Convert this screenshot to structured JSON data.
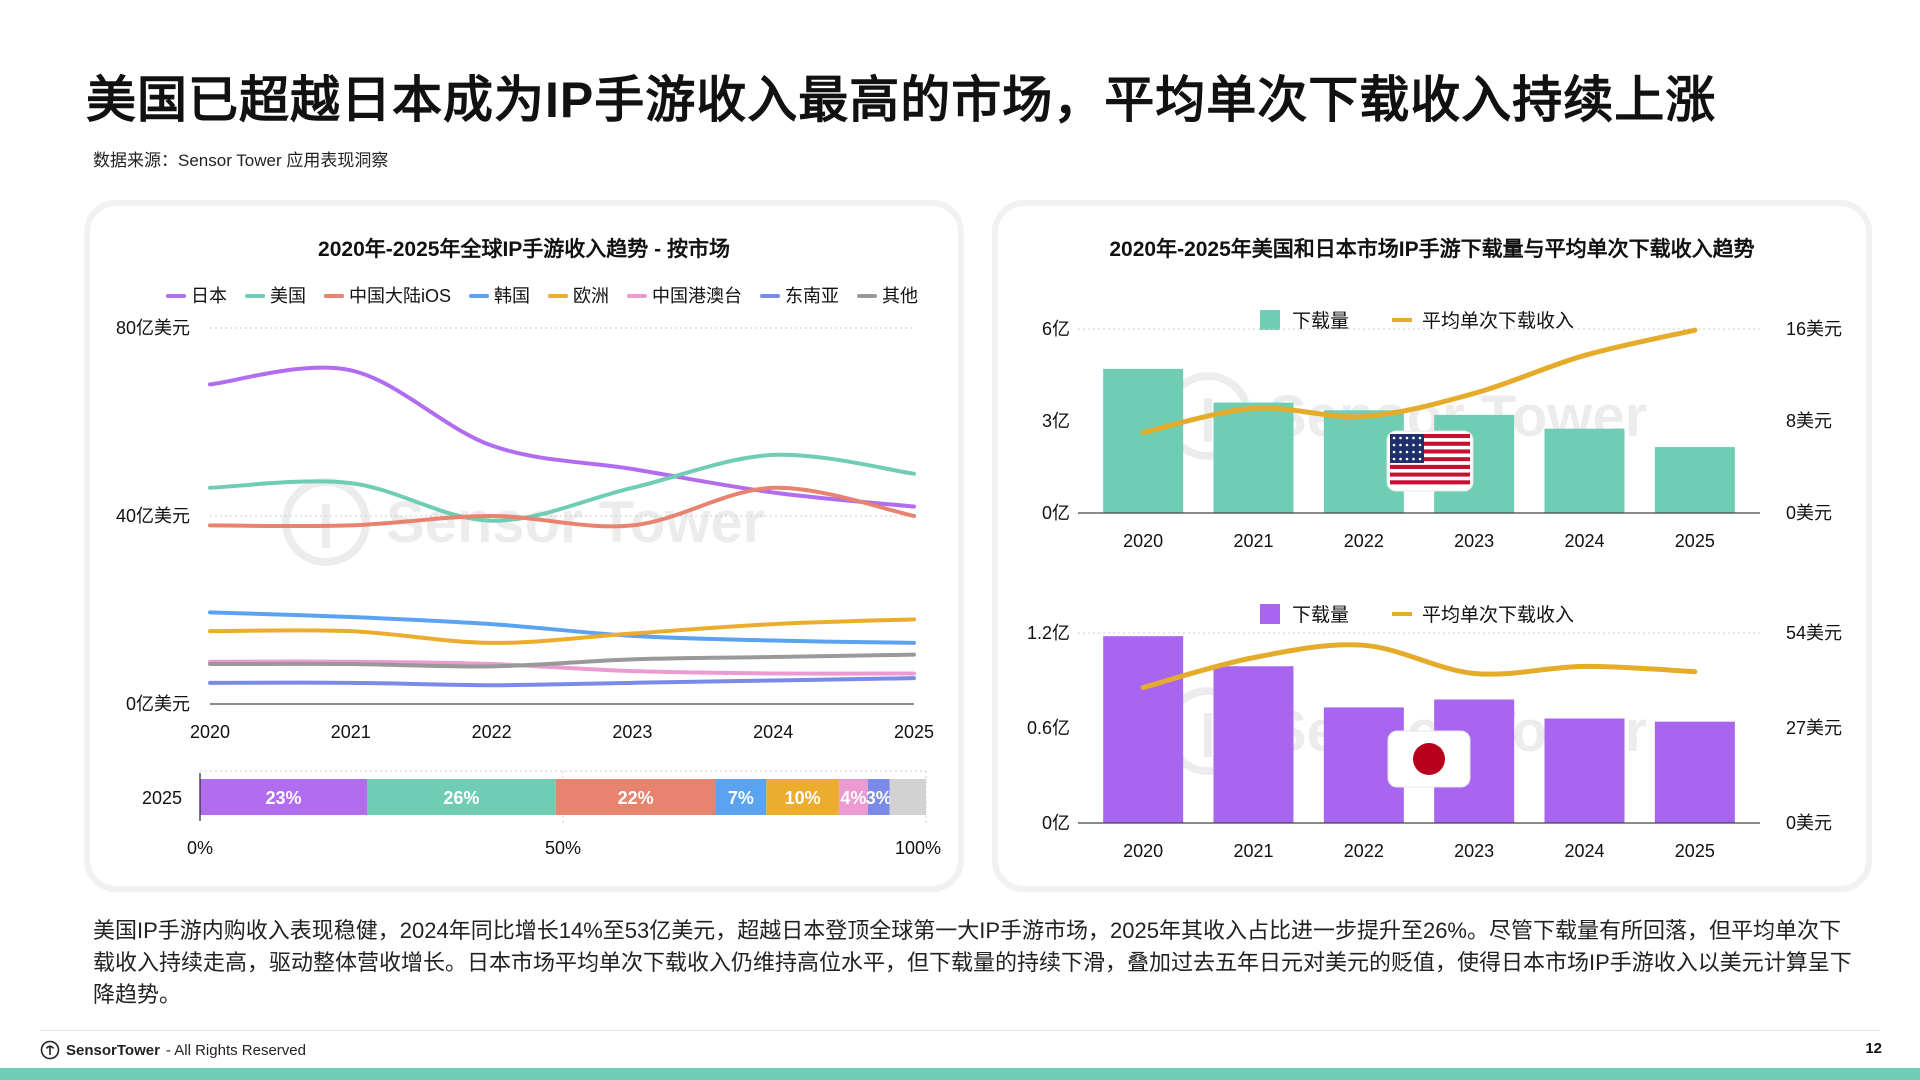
{
  "page": {
    "title": "美国已超越日本成为IP手游收入最高的市场，平均单次下载收入持续上涨",
    "source": "数据来源：Sensor Tower 应用表现洞察",
    "description": "美国IP手游内购收入表现稳健，2024年同比增长14%至53亿美元，超越日本登顶全球第一大IP手游市场，2025年其收入占比进一步提升至26%。尽管下载量有所回落，但平均单次下载收入持续走高，驱动整体营收增长。日本市场平均单次下载收入仍维持高位水平，但下载量的持续下滑，叠加过去五年日元对美元的贬值，使得日本市场IP手游收入以美元计算呈下降趋势。",
    "footer_brand": "SensorTower",
    "footer_rights": "- All Rights Reserved",
    "page_number": "12",
    "watermark": "Sensor Tower"
  },
  "chart_data": [
    {
      "type": "line",
      "title": "2020年-2025年全球IP手游收入趋势 - 按市场",
      "x": [
        "2020",
        "2021",
        "2022",
        "2023",
        "2024",
        "2025"
      ],
      "y_ticks": [
        "0亿美元",
        "40亿美元",
        "80亿美元"
      ],
      "ylim": [
        0,
        80
      ],
      "grid": true,
      "legend": "top",
      "series": [
        {
          "name": "日本",
          "color": "#b26cf0",
          "values": [
            68,
            71,
            55,
            50,
            45,
            42
          ]
        },
        {
          "name": "美国",
          "color": "#6fcdb4",
          "values": [
            46,
            47,
            39,
            46,
            53,
            49
          ]
        },
        {
          "name": "中国大陆iOS",
          "color": "#e7836e",
          "values": [
            38,
            38,
            40,
            38,
            46,
            40
          ]
        },
        {
          "name": "韩国",
          "color": "#5aa3f0",
          "values": [
            19.5,
            18.5,
            17,
            14.5,
            13.5,
            13
          ]
        },
        {
          "name": "欧洲",
          "color": "#ecac2e",
          "values": [
            15.5,
            15.5,
            13,
            15,
            17,
            18
          ]
        },
        {
          "name": "中国港澳台",
          "color": "#ec9bd2",
          "values": [
            9,
            9,
            8.5,
            7,
            6.5,
            6.5
          ]
        },
        {
          "name": "东南亚",
          "color": "#7a8ae8",
          "values": [
            4.5,
            4.5,
            4,
            4.5,
            5,
            5.5
          ]
        },
        {
          "name": "其他",
          "color": "#999999",
          "values": [
            8.5,
            8.5,
            8,
            9.5,
            10,
            10.5
          ]
        }
      ]
    },
    {
      "type": "bar",
      "title": "",
      "categories": [
        "2025"
      ],
      "stacked_percent": true,
      "x_ticks": [
        "0%",
        "50%",
        "100%"
      ],
      "segments": [
        {
          "name": "日本",
          "value": 23,
          "label": "23%",
          "color": "#b26cf0"
        },
        {
          "name": "美国",
          "value": 26,
          "label": "26%",
          "color": "#6fcdb4"
        },
        {
          "name": "中国大陆iOS",
          "value": 22,
          "label": "22%",
          "color": "#e7836e"
        },
        {
          "name": "韩国",
          "value": 7,
          "label": "7%",
          "color": "#5aa3f0"
        },
        {
          "name": "欧洲",
          "value": 10,
          "label": "10%",
          "color": "#ecac2e"
        },
        {
          "name": "中国港澳台",
          "value": 4,
          "label": "4%",
          "color": "#ec9bd2"
        },
        {
          "name": "东南亚",
          "value": 3,
          "label": "3%",
          "color": "#7a8ae8"
        },
        {
          "name": "其他",
          "value": 5,
          "label": "",
          "color": "#d2d2d2"
        }
      ]
    },
    {
      "type": "bar",
      "title": "2020年-2025年美国和日本市场IP手游下载量与平均单次下载收入趋势",
      "market": "美国",
      "categories": [
        "2020",
        "2021",
        "2022",
        "2023",
        "2024",
        "2025"
      ],
      "series": [
        {
          "name": "下载量",
          "type": "bar",
          "color": "#6fcdb4",
          "values": [
            4.7,
            3.6,
            3.35,
            3.2,
            2.75,
            2.15
          ]
        },
        {
          "name": "平均单次下载收入",
          "type": "line",
          "axis": "right",
          "color": "#e5ac2c",
          "values": [
            7.0,
            9.1,
            8.4,
            10.4,
            13.7,
            15.9
          ]
        }
      ],
      "y_left_ticks": [
        "0亿",
        "3亿",
        "6亿"
      ],
      "ylim_left": [
        0,
        6
      ],
      "y_right_ticks": [
        "0美元",
        "8美元",
        "16美元"
      ],
      "ylim_right": [
        0,
        16
      ],
      "legend": "top"
    },
    {
      "type": "bar",
      "title": "",
      "market": "日本",
      "categories": [
        "2020",
        "2021",
        "2022",
        "2023",
        "2024",
        "2025"
      ],
      "series": [
        {
          "name": "下载量",
          "type": "bar",
          "color": "#a866f0",
          "values": [
            1.18,
            0.99,
            0.73,
            0.78,
            0.66,
            0.64
          ]
        },
        {
          "name": "平均单次下载收入",
          "type": "line",
          "axis": "right",
          "color": "#e5ac2c",
          "values": [
            38.5,
            47,
            50.5,
            42.5,
            44.5,
            43
          ]
        }
      ],
      "y_left_ticks": [
        "0亿",
        "0.6亿",
        "1.2亿"
      ],
      "ylim_left": [
        0,
        1.2
      ],
      "y_right_ticks": [
        "0美元",
        "27美元",
        "54美元"
      ],
      "ylim_right": [
        0,
        54
      ],
      "legend": "top"
    }
  ]
}
